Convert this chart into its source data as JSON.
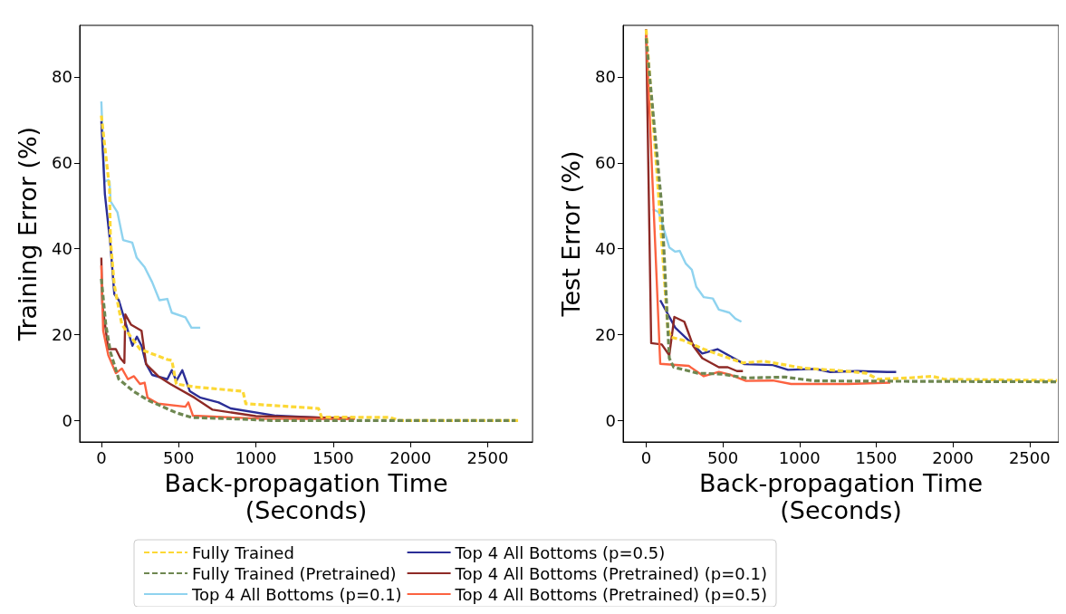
{
  "chart_data": [
    {
      "type": "line",
      "xlabel": "Back-propagation Time\n(Seconds)",
      "ylabel": "Training Error (%)",
      "xlim": [
        -140,
        2790
      ],
      "ylim": [
        -5,
        92
      ],
      "xticks": [
        0,
        500,
        1000,
        1500,
        2000,
        2500
      ],
      "yticks": [
        0,
        20,
        40,
        60,
        80
      ],
      "legend": "bottom",
      "series": [
        {
          "name": "Fully Trained",
          "color": "#fcd835",
          "line_style": "dashed",
          "x": [
            0,
            53,
            59,
            84,
            133,
            250,
            427,
            456,
            485,
            603,
            916,
            935,
            1405,
            1425,
            1865,
            1932,
            2700
          ],
          "values": [
            71,
            54,
            42,
            31.5,
            22.3,
            16.6,
            14.2,
            14,
            8.5,
            7.8,
            6.8,
            3.9,
            2.8,
            0.8,
            0.7,
            0,
            0
          ]
        },
        {
          "name": "Fully Trained (Pretrained)",
          "color": "#6e8751",
          "line_style": "dashed",
          "x": [
            0,
            29,
            59,
            113,
            211,
            309,
            485,
            583,
            916,
            1100,
            2680
          ],
          "values": [
            33,
            22.3,
            15.9,
            9.6,
            6.7,
            4.6,
            1.8,
            0.7,
            0.3,
            0,
            0
          ]
        },
        {
          "name": "Top 4 All Bottoms (p=0.1)",
          "color": "#8fd3ef",
          "line_style": "solid",
          "x": [
            0,
            20,
            45,
            53,
            60,
            104,
            141,
            200,
            229,
            280,
            329,
            376,
            427,
            456,
            544,
            583,
            640
          ],
          "values": [
            74.3,
            55.6,
            56,
            55.6,
            51,
            48.5,
            42,
            41.4,
            37.9,
            35.7,
            32.2,
            28,
            28.3,
            25.1,
            24,
            21.6,
            21.6
          ]
        },
        {
          "name": "Top 4 All Bottoms (p=0.5)",
          "color": "#2b2e96",
          "line_style": "solid",
          "x": [
            0,
            23,
            59,
            84,
            113,
            201,
            230,
            260,
            289,
            329,
            427,
            456,
            485,
            524,
            573,
            642,
            759,
            837,
            1131,
            1561,
            1630
          ],
          "values": [
            69.7,
            52.7,
            40.8,
            29.4,
            28,
            17.4,
            19.5,
            17.4,
            13.2,
            10.6,
            9.6,
            11.7,
            9.2,
            11.7,
            6.8,
            5.3,
            4.2,
            2.8,
            1.1,
            0.4,
            0.4
          ]
        },
        {
          "name": "Top 4 All Bottoms (Pretrained) (p=0.1)",
          "color": "#8e2a26",
          "line_style": "solid",
          "x": [
            0,
            6,
            45,
            94,
            123,
            149,
            155,
            192,
            260,
            290,
            368,
            446,
            603,
            720,
            1000,
            1640
          ],
          "values": [
            37.9,
            27.2,
            16.6,
            16.6,
            14.5,
            13.4,
            24.7,
            22.3,
            20.9,
            13.1,
            10.3,
            8.5,
            5.3,
            2.5,
            1,
            0.5
          ]
        },
        {
          "name": "Top 4 All Bottoms (Pretrained) (p=0.5)",
          "color": "#fc6240",
          "line_style": "solid",
          "x": [
            0,
            12,
            45,
            94,
            133,
            172,
            211,
            250,
            280,
            299,
            368,
            544,
            563,
            593,
            1033,
            1640
          ],
          "values": [
            36.1,
            20.9,
            15.2,
            11,
            12.1,
            9.6,
            10.3,
            8.5,
            8.8,
            5.3,
            3.9,
            3.2,
            4.2,
            1.1,
            0.4,
            0.3
          ]
        }
      ]
    },
    {
      "type": "line",
      "xlabel": "Back-propagation Time\n(Seconds)",
      "ylabel": "Test Error (%)",
      "xlim": [
        -150,
        2690
      ],
      "ylim": [
        -5,
        92
      ],
      "xticks": [
        0,
        500,
        1000,
        1500,
        2000,
        2500
      ],
      "yticks": [
        0,
        20,
        40,
        60,
        80
      ],
      "series": [
        {
          "name": "Fully Trained",
          "color": "#fcd835",
          "line_style": "dashed",
          "x": [
            0,
            72,
            141,
            161,
            239,
            376,
            631,
            768,
            1023,
            1298,
            1435,
            1513,
            1709,
            1866,
            1944,
            2679
          ],
          "values": [
            91,
            57,
            21.6,
            19.4,
            18.7,
            16.6,
            13.4,
            13.8,
            12.2,
            11.5,
            11,
            9.6,
            9.9,
            10.3,
            9.6,
            9.3
          ]
        },
        {
          "name": "Fully Trained (Pretrained)",
          "color": "#6e8751",
          "line_style": "dashed",
          "x": [
            0,
            102,
            151,
            180,
            337,
            494,
            651,
            906,
            1101,
            2680
          ],
          "values": [
            89,
            49.9,
            14.5,
            12.4,
            11,
            10.8,
            9.9,
            10.1,
            9.2,
            9
          ]
        },
        {
          "name": "Top 4 All Bottoms (p=0.1)",
          "color": "#8fd3ef",
          "line_style": "solid",
          "x": [
            43,
            82,
            151,
            190,
            219,
            259,
            298,
            327,
            376,
            435,
            474,
            543,
            582,
            621
          ],
          "values": [
            49.2,
            48.5,
            40.3,
            39.3,
            39.5,
            36.5,
            35.1,
            31.1,
            28.7,
            28.4,
            25.8,
            25.1,
            23.7,
            23
          ]
        },
        {
          "name": "Top 4 All Bottoms (p=0.5)",
          "color": "#2b2e96",
          "line_style": "solid",
          "x": [
            92,
            190,
            366,
            465,
            641,
            827,
            925,
            1101,
            1200,
            1376,
            1572,
            1630
          ],
          "values": [
            28,
            21.6,
            15.6,
            16.6,
            13.1,
            12.9,
            11.8,
            12,
            11.3,
            11.5,
            11.3,
            11.3
          ]
        },
        {
          "name": "Top 4 All Bottoms (Pretrained) (p=0.1)",
          "color": "#8e2a26",
          "line_style": "solid",
          "x": [
            0,
            33,
            102,
            151,
            184,
            249,
            308,
            366,
            474,
            532,
            592,
            631
          ],
          "values": [
            91.1,
            18,
            17.7,
            15.2,
            24.1,
            23,
            17.3,
            14.5,
            12.4,
            12.4,
            11.5,
            11.5
          ]
        },
        {
          "name": "Top 4 All Bottoms (Pretrained) (p=0.5)",
          "color": "#fc6240",
          "line_style": "solid",
          "x": [
            0,
            92,
            278,
            376,
            474,
            553,
            651,
            827,
            945,
            1318,
            1592
          ],
          "values": [
            90.6,
            13.2,
            12.7,
            10.3,
            11.3,
            10.6,
            9.2,
            9.3,
            8.5,
            8.5,
            8.8
          ]
        }
      ]
    }
  ]
}
